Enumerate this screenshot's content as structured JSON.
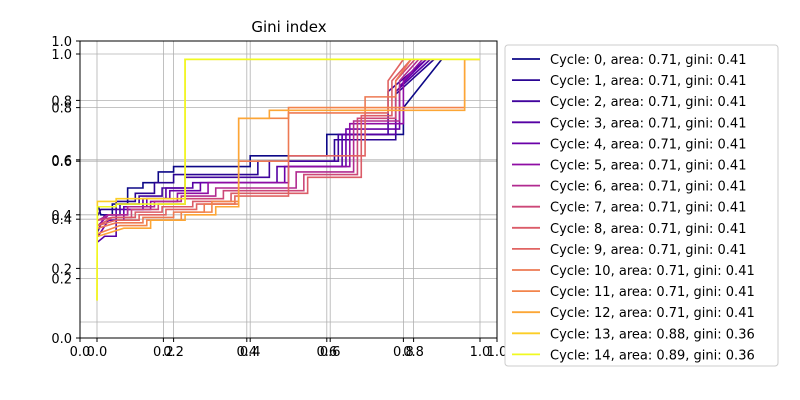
{
  "chart_data": {
    "type": "line",
    "title": "Gini index",
    "xlim": [
      0.0,
      1.0
    ],
    "ylim": [
      0.0,
      1.0
    ],
    "grid": true,
    "legend_placement": "outside-right",
    "x_ticks_primary": [
      "0.0",
      "0.2",
      "0.4",
      "0.6",
      "0.8",
      "1.0"
    ],
    "x_ticks_secondary": [
      "0.0",
      "0.2",
      "0.4",
      "0.6",
      "0.8",
      "1.0"
    ],
    "y_ticks_primary": [
      "0.0",
      "0.2",
      "0.4",
      "0.6",
      "0.8",
      "1.0"
    ],
    "y_ticks_secondary": [
      "0.2",
      "0.4",
      "0.6",
      "0.8",
      "1.0"
    ],
    "series": [
      {
        "name": "Cycle: 0, area: 0.71, gini: 0.41",
        "color": "#0d0887",
        "x": [
          0.0,
          0.004,
          0.01,
          0.04,
          0.04,
          0.08,
          0.08,
          0.12,
          0.12,
          0.16,
          0.16,
          0.2,
          0.2,
          0.4,
          0.4,
          0.6,
          0.6,
          0.8,
          0.8,
          0.9
        ],
        "y": [
          0.43,
          0.43,
          0.4,
          0.4,
          0.44,
          0.44,
          0.5,
          0.5,
          0.52,
          0.52,
          0.56,
          0.56,
          0.58,
          0.58,
          0.62,
          0.62,
          0.7,
          0.7,
          0.8,
          0.98
        ]
      },
      {
        "name": "Cycle: 1, area: 0.71, gini: 0.41",
        "color": "#2a0593",
        "x": [
          0.0,
          0.003,
          0.01,
          0.05,
          0.05,
          0.1,
          0.1,
          0.15,
          0.15,
          0.2,
          0.2,
          0.42,
          0.42,
          0.62,
          0.62,
          0.78,
          0.78,
          0.88
        ],
        "y": [
          0.4,
          0.4,
          0.42,
          0.42,
          0.45,
          0.45,
          0.48,
          0.48,
          0.52,
          0.52,
          0.55,
          0.55,
          0.6,
          0.6,
          0.68,
          0.68,
          0.85,
          0.98
        ]
      },
      {
        "name": "Cycle: 2, area: 0.71, gini: 0.41",
        "color": "#41049d",
        "x": [
          0.0,
          0.003,
          0.02,
          0.06,
          0.06,
          0.11,
          0.11,
          0.17,
          0.17,
          0.23,
          0.23,
          0.45,
          0.45,
          0.63,
          0.63,
          0.76,
          0.76,
          0.86
        ],
        "y": [
          0.34,
          0.34,
          0.4,
          0.4,
          0.44,
          0.44,
          0.47,
          0.47,
          0.5,
          0.5,
          0.54,
          0.54,
          0.6,
          0.6,
          0.7,
          0.7,
          0.86,
          0.98
        ]
      },
      {
        "name": "Cycle: 3, area: 0.71, gini: 0.41",
        "color": "#5601a4",
        "x": [
          0.0,
          0.003,
          0.02,
          0.05,
          0.05,
          0.12,
          0.12,
          0.18,
          0.18,
          0.25,
          0.25,
          0.47,
          0.47,
          0.64,
          0.64,
          0.78,
          0.78,
          0.87
        ],
        "y": [
          0.3,
          0.3,
          0.32,
          0.32,
          0.42,
          0.42,
          0.46,
          0.46,
          0.5,
          0.5,
          0.52,
          0.52,
          0.58,
          0.58,
          0.7,
          0.7,
          0.86,
          0.98
        ]
      },
      {
        "name": "Cycle: 4, area: 0.71, gini: 0.41",
        "color": "#6a00a8",
        "x": [
          0.0,
          0.003,
          0.03,
          0.07,
          0.07,
          0.13,
          0.13,
          0.19,
          0.19,
          0.27,
          0.27,
          0.49,
          0.49,
          0.65,
          0.65,
          0.79,
          0.79,
          0.86
        ],
        "y": [
          0.32,
          0.32,
          0.38,
          0.38,
          0.43,
          0.43,
          0.46,
          0.46,
          0.49,
          0.49,
          0.52,
          0.52,
          0.58,
          0.58,
          0.72,
          0.72,
          0.88,
          0.98
        ]
      },
      {
        "name": "Cycle: 5, area: 0.71, gini: 0.41",
        "color": "#8f0da4",
        "x": [
          0.0,
          0.003,
          0.03,
          0.08,
          0.08,
          0.14,
          0.14,
          0.21,
          0.21,
          0.29,
          0.29,
          0.5,
          0.5,
          0.66,
          0.66,
          0.8,
          0.8,
          0.85
        ],
        "y": [
          0.36,
          0.36,
          0.4,
          0.4,
          0.42,
          0.42,
          0.45,
          0.45,
          0.48,
          0.48,
          0.52,
          0.52,
          0.58,
          0.58,
          0.74,
          0.74,
          0.9,
          0.98
        ]
      },
      {
        "name": "Cycle: 6, area: 0.71, gini: 0.41",
        "color": "#b12a90",
        "x": [
          0.0,
          0.003,
          0.03,
          0.08,
          0.08,
          0.15,
          0.15,
          0.22,
          0.22,
          0.31,
          0.31,
          0.52,
          0.52,
          0.67,
          0.67,
          0.79,
          0.79,
          0.84
        ],
        "y": [
          0.38,
          0.38,
          0.4,
          0.4,
          0.43,
          0.43,
          0.45,
          0.45,
          0.47,
          0.47,
          0.5,
          0.5,
          0.56,
          0.56,
          0.75,
          0.75,
          0.9,
          0.98
        ]
      },
      {
        "name": "Cycle: 7, area: 0.71, gini: 0.41",
        "color": "#cc4778",
        "x": [
          0.0,
          0.003,
          0.04,
          0.09,
          0.09,
          0.16,
          0.16,
          0.23,
          0.23,
          0.33,
          0.33,
          0.54,
          0.54,
          0.68,
          0.68,
          0.78,
          0.78,
          0.83
        ],
        "y": [
          0.38,
          0.38,
          0.39,
          0.39,
          0.42,
          0.42,
          0.44,
          0.44,
          0.46,
          0.46,
          0.49,
          0.49,
          0.55,
          0.55,
          0.76,
          0.76,
          0.9,
          0.98
        ]
      },
      {
        "name": "Cycle: 8, area: 0.71, gini: 0.41",
        "color": "#db5c68",
        "x": [
          0.0,
          0.003,
          0.04,
          0.1,
          0.1,
          0.17,
          0.17,
          0.25,
          0.25,
          0.35,
          0.35,
          0.55,
          0.55,
          0.69,
          0.69,
          0.77,
          0.77,
          0.82
        ],
        "y": [
          0.36,
          0.36,
          0.39,
          0.39,
          0.41,
          0.41,
          0.43,
          0.43,
          0.45,
          0.45,
          0.48,
          0.48,
          0.54,
          0.54,
          0.77,
          0.77,
          0.9,
          0.98
        ]
      },
      {
        "name": "Cycle: 9, area: 0.71, gini: 0.41",
        "color": "#e16462",
        "x": [
          0.0,
          0.003,
          0.05,
          0.11,
          0.11,
          0.18,
          0.18,
          0.26,
          0.26,
          0.36,
          0.36,
          0.5,
          0.5,
          0.7,
          0.7,
          0.76,
          0.76,
          0.8
        ],
        "y": [
          0.36,
          0.36,
          0.38,
          0.38,
          0.4,
          0.4,
          0.42,
          0.42,
          0.44,
          0.44,
          0.47,
          0.47,
          0.62,
          0.62,
          0.78,
          0.78,
          0.9,
          0.98
        ]
      },
      {
        "name": "Cycle: 10, area: 0.71, gini: 0.41",
        "color": "#ed7953",
        "x": [
          0.0,
          0.003,
          0.05,
          0.12,
          0.12,
          0.2,
          0.2,
          0.28,
          0.28,
          0.37,
          0.37,
          0.5,
          0.5,
          0.7,
          0.7,
          0.78,
          0.78,
          0.82
        ],
        "y": [
          0.35,
          0.35,
          0.37,
          0.37,
          0.39,
          0.39,
          0.41,
          0.41,
          0.44,
          0.44,
          0.6,
          0.6,
          0.78,
          0.78,
          0.84,
          0.84,
          0.9,
          0.98
        ]
      },
      {
        "name": "Cycle: 11, area: 0.71, gini: 0.41",
        "color": "#f2844b",
        "x": [
          0.0,
          0.003,
          0.06,
          0.13,
          0.13,
          0.22,
          0.22,
          0.3,
          0.3,
          0.37,
          0.37,
          0.5,
          0.5,
          0.85,
          0.85,
          0.96,
          0.96,
          1.0
        ],
        "y": [
          0.33,
          0.33,
          0.36,
          0.36,
          0.38,
          0.38,
          0.41,
          0.41,
          0.45,
          0.45,
          0.76,
          0.76,
          0.8,
          0.8,
          0.8,
          0.8,
          0.98,
          0.98
        ]
      },
      {
        "name": "Cycle: 12, area: 0.71, gini: 0.41",
        "color": "#fca636",
        "x": [
          0.0,
          0.003,
          0.07,
          0.14,
          0.14,
          0.23,
          0.23,
          0.31,
          0.31,
          0.37,
          0.37,
          0.45,
          0.45,
          0.83,
          0.83,
          0.96,
          0.96,
          1.0
        ],
        "y": [
          0.32,
          0.32,
          0.35,
          0.35,
          0.38,
          0.38,
          0.4,
          0.4,
          0.43,
          0.43,
          0.76,
          0.76,
          0.79,
          0.79,
          0.79,
          0.79,
          0.98,
          0.98
        ]
      },
      {
        "name": "Cycle: 13, area: 0.88, gini: 0.36",
        "color": "#fcce25",
        "x": [
          0.0,
          0.001,
          0.003,
          0.05,
          0.05,
          0.23,
          0.23,
          0.265,
          0.265,
          1.0
        ],
        "y": [
          0.08,
          0.45,
          0.45,
          0.45,
          0.46,
          0.46,
          0.98,
          0.98,
          0.98,
          0.98
        ]
      },
      {
        "name": "Cycle: 14, area: 0.89, gini: 0.36",
        "color": "#f0f921",
        "x": [
          0.0,
          0.001,
          0.003,
          0.05,
          0.05,
          0.21,
          0.21,
          0.23,
          0.23,
          1.0
        ],
        "y": [
          0.08,
          0.43,
          0.43,
          0.43,
          0.44,
          0.44,
          0.44,
          0.44,
          0.98,
          0.98
        ]
      }
    ]
  }
}
